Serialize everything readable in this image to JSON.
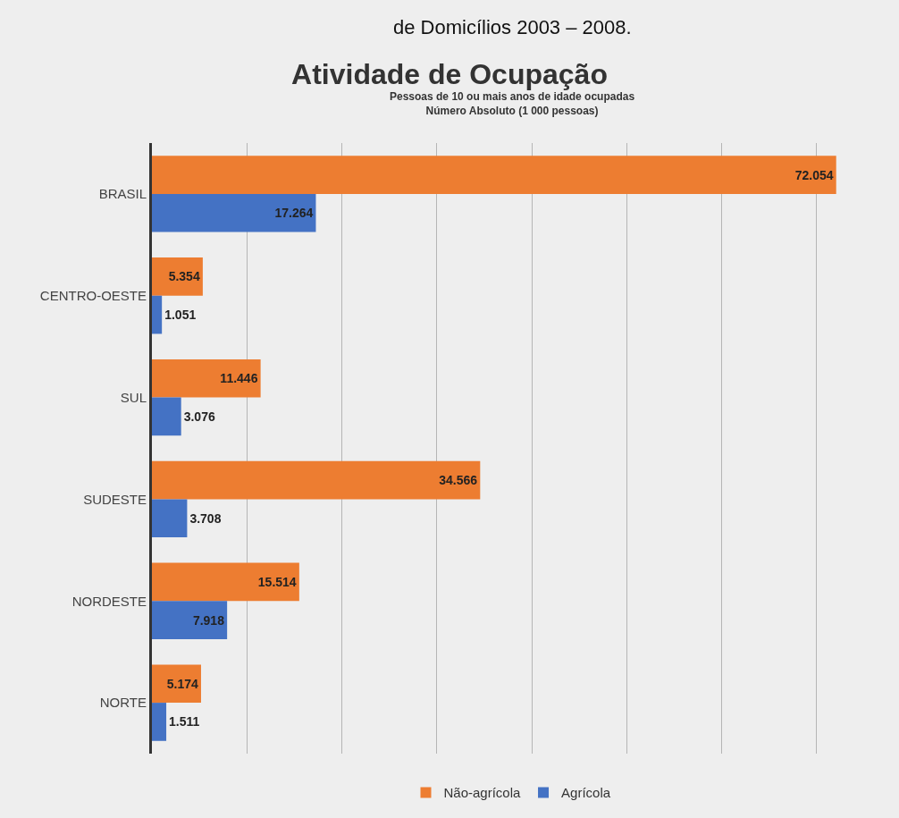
{
  "chart_data": {
    "type": "bar",
    "orientation": "horizontal",
    "title": "Atividade de Ocupação",
    "subtitle": "Pessoas de 10 ou mais anos de idade ocupadas\nNúmero Absoluto (1 000 pessoas)",
    "annotations": [
      "de Domicílios 2003 – 2008."
    ],
    "categories": [
      "BRASIL",
      "CENTRO-OESTE",
      "SUL",
      "SUDESTE",
      "NORDESTE",
      "NORTE"
    ],
    "series": [
      {
        "name": "Não-agrícola",
        "color": "#ed7d31",
        "values": [
          72054,
          5354,
          11446,
          34566,
          15514,
          5174
        ],
        "value_labels": [
          "72.054",
          "5.354",
          "11.446",
          "34.566",
          "15.514",
          "5.174"
        ]
      },
      {
        "name": "Agrícola",
        "color": "#4472c4",
        "values": [
          17264,
          1051,
          3076,
          3708,
          7918,
          1511
        ],
        "value_labels": [
          "17.264",
          "1.051",
          "3.076",
          "3.708",
          "7.918",
          "1.511"
        ]
      }
    ],
    "xticks": [
      {
        "value": 0,
        "label": null
      },
      {
        "value": 10000,
        "label": null
      },
      {
        "value": 20000,
        "label": null
      },
      {
        "value": 30000,
        "label": null
      },
      {
        "value": 40000,
        "label": null
      },
      {
        "value": 50000,
        "label": null
      },
      {
        "value": 60000,
        "label": null
      },
      {
        "value": 70000,
        "label": null
      }
    ],
    "tick_labels": "y",
    "grid": "x",
    "legend": "bottom"
  }
}
